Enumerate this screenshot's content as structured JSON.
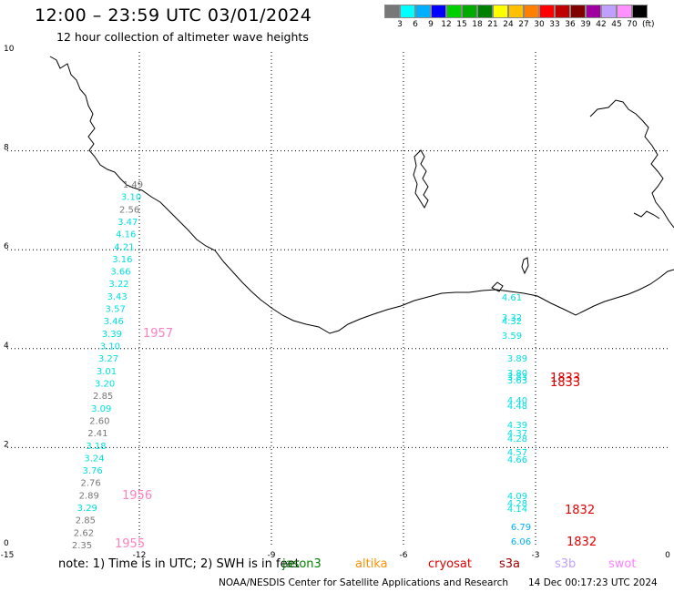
{
  "header": {
    "title": "12:00 – 23:59 UTC 03/01/2024",
    "subtitle": "12 hour collection of altimeter wave heights"
  },
  "legend": {
    "colors": [
      "#777777",
      "#00ffff",
      "#00b0ff",
      "#0000ff",
      "#00d000",
      "#00aa00",
      "#008000",
      "#ffff00",
      "#ffc000",
      "#ff8000",
      "#ff0000",
      "#c00000",
      "#800000",
      "#a000a0",
      "#c0a0ff",
      "#ff90ff",
      "#000000"
    ],
    "ticks": [
      "3",
      "6",
      "9",
      "12",
      "15",
      "18",
      "21",
      "24",
      "27",
      "30",
      "33",
      "36",
      "39",
      "42",
      "45",
      "70"
    ],
    "unit": "(ft)"
  },
  "axes": {
    "x_ticks": [
      "-15",
      "-12",
      "-9",
      "-6",
      "-3",
      "0"
    ],
    "y_ticks": [
      "0",
      "2",
      "4",
      "6",
      "8",
      "10"
    ]
  },
  "tracks": [
    {
      "name": "track-left",
      "points": [
        {
          "v": "1.49",
          "c": "#777777"
        },
        {
          "v": "3.10",
          "c": "#00e0e0"
        },
        {
          "v": "2.56",
          "c": "#777777"
        },
        {
          "v": "3.47",
          "c": "#00e0e0"
        },
        {
          "v": "4.16",
          "c": "#00e0e0"
        },
        {
          "v": "4.21",
          "c": "#00e0e0"
        },
        {
          "v": "3.16",
          "c": "#00e0e0"
        },
        {
          "v": "3.66",
          "c": "#00e0e0"
        },
        {
          "v": "3.22",
          "c": "#00e0e0"
        },
        {
          "v": "3.43",
          "c": "#00e0e0"
        },
        {
          "v": "3.57",
          "c": "#00e0e0"
        },
        {
          "v": "3.46",
          "c": "#00e0e0"
        },
        {
          "v": "3.39",
          "c": "#00e0e0"
        },
        {
          "v": "3.10",
          "c": "#00e0e0"
        },
        {
          "v": "3.27",
          "c": "#00e0e0"
        },
        {
          "v": "3.01",
          "c": "#00e0e0"
        },
        {
          "v": "3.20",
          "c": "#00e0e0"
        },
        {
          "v": "2.85",
          "c": "#777777"
        },
        {
          "v": "3.09",
          "c": "#00e0e0"
        },
        {
          "v": "2.60",
          "c": "#777777"
        },
        {
          "v": "2.41",
          "c": "#777777"
        },
        {
          "v": "3.18",
          "c": "#00e0e0"
        },
        {
          "v": "3.24",
          "c": "#00e0e0"
        },
        {
          "v": "3.76",
          "c": "#00e0e0"
        },
        {
          "v": "2.76",
          "c": "#777777"
        },
        {
          "v": "2.89",
          "c": "#777777"
        },
        {
          "v": "3.29",
          "c": "#00e0e0"
        },
        {
          "v": "2.85",
          "c": "#777777"
        },
        {
          "v": "2.62",
          "c": "#777777"
        },
        {
          "v": "2.35",
          "c": "#777777"
        }
      ]
    },
    {
      "name": "track-right",
      "points": [
        {
          "v": "4.61",
          "c": "#00e0e0"
        },
        {
          "v": "3.32",
          "c": "#00e0e0"
        },
        {
          "v": "4.32",
          "c": "#00e0e0"
        },
        {
          "v": "3.59",
          "c": "#00e0e0"
        },
        {
          "v": "3.89",
          "c": "#00e0e0"
        },
        {
          "v": "3.80",
          "c": "#00e0e0"
        },
        {
          "v": "3.83",
          "c": "#00e0e0"
        },
        {
          "v": "3.63",
          "c": "#00e0e0"
        },
        {
          "v": "4.40",
          "c": "#00e0e0"
        },
        {
          "v": "4.48",
          "c": "#00e0e0"
        },
        {
          "v": "4.39",
          "c": "#00e0e0"
        },
        {
          "v": "4.37",
          "c": "#00e0e0"
        },
        {
          "v": "4.28",
          "c": "#00e0e0"
        },
        {
          "v": "4.57",
          "c": "#00e0e0"
        },
        {
          "v": "4.66",
          "c": "#00e0e0"
        },
        {
          "v": "4.09",
          "c": "#00e0e0"
        },
        {
          "v": "4.28",
          "c": "#00e0e0"
        },
        {
          "v": "4.14",
          "c": "#00e0e0"
        },
        {
          "v": "6.79",
          "c": "#00b0ff"
        },
        {
          "v": "6.06",
          "c": "#00b0ff"
        }
      ]
    }
  ],
  "time_labels": [
    {
      "t": "1957",
      "c": "#ff80c0"
    },
    {
      "t": "1956",
      "c": "#ff80c0"
    },
    {
      "t": "1955",
      "c": "#ff80c0"
    },
    {
      "t": "1833",
      "c": "#e00000"
    },
    {
      "t": "1833",
      "c": "#e00000"
    },
    {
      "t": "1832",
      "c": "#e00000"
    },
    {
      "t": "1832",
      "c": "#e00000"
    }
  ],
  "note": {
    "text": "note: 1) Time is in UTC; 2) SWH is in feet",
    "satellites": [
      {
        "name": "jason3",
        "c": "#008000"
      },
      {
        "name": "altika",
        "c": "#ff9000"
      },
      {
        "name": "cryosat",
        "c": "#e00000"
      },
      {
        "name": "s3a",
        "c": "#a00000"
      },
      {
        "name": "s3b",
        "c": "#c0a0ff"
      },
      {
        "name": "swot",
        "c": "#ff80ff"
      }
    ]
  },
  "footer": {
    "credit": "NOAA/NESDIS Center for Satellite Applications and Research",
    "timestamp": "14 Dec 00:17:23 UTC 2024"
  }
}
